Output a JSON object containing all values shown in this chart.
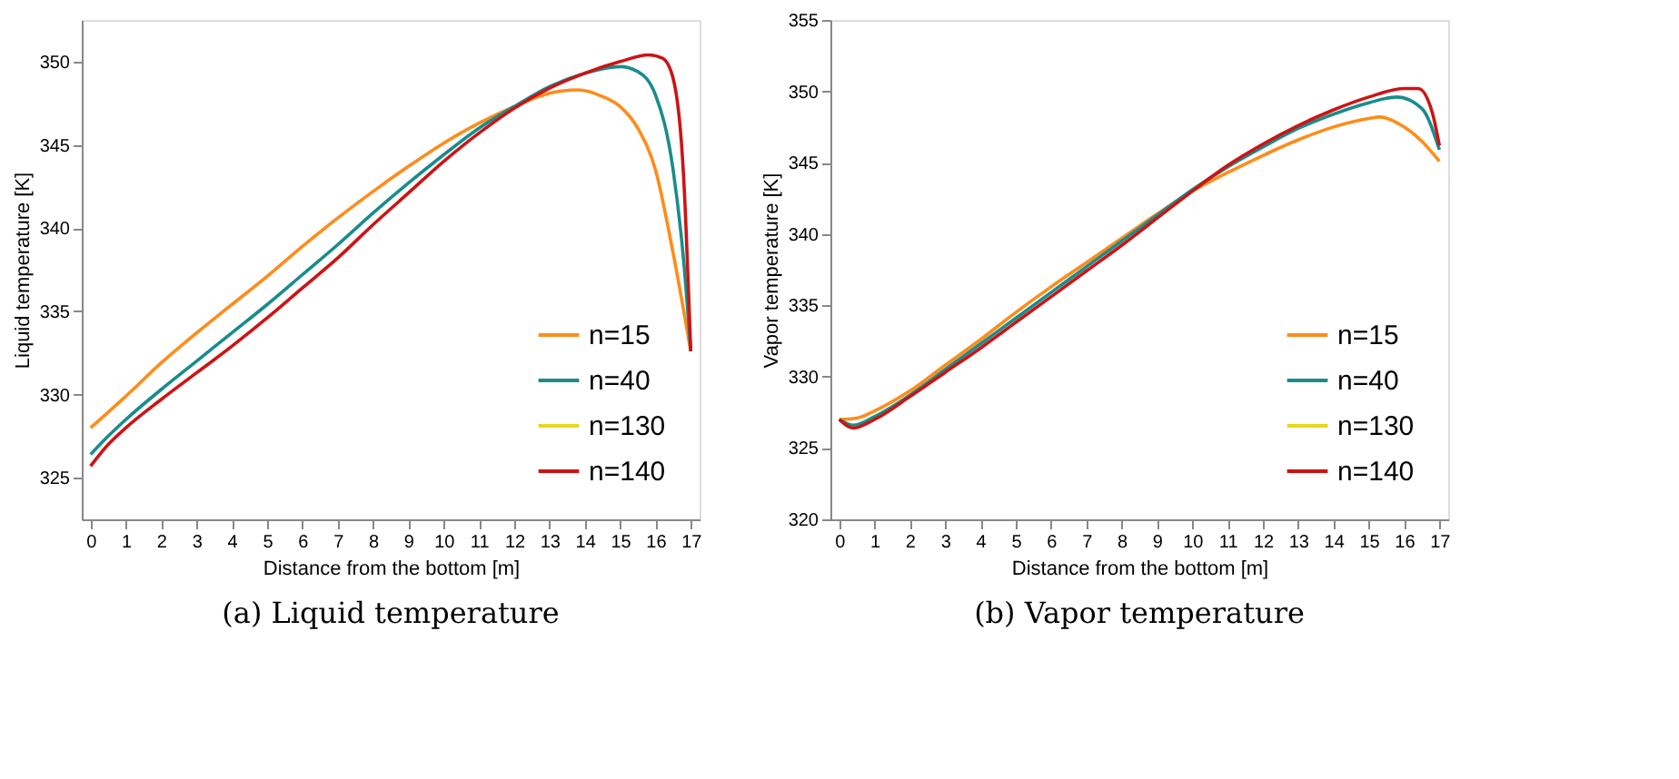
{
  "chart_data": [
    {
      "type": "line",
      "title": "(a) Liquid temperature",
      "xlabel": "Distance from the bottom [m]",
      "ylabel": "Liquid temperature [K]",
      "xlim": [
        -0.25,
        17.25
      ],
      "ylim": [
        322.5,
        352.5
      ],
      "xticks": [
        0,
        1,
        2,
        3,
        4,
        5,
        6,
        7,
        8,
        9,
        10,
        11,
        12,
        13,
        14,
        15,
        16,
        17
      ],
      "yticks": [
        325,
        330,
        335,
        340,
        345,
        350
      ],
      "grid": false,
      "legend": "bottom right",
      "series": [
        {
          "name": "n=15",
          "color": "#ff8c1a",
          "x": [
            0,
            1,
            2,
            3,
            4,
            5,
            6,
            7,
            8,
            9,
            10,
            11,
            12,
            13,
            13.8,
            14.5,
            15,
            15.5,
            16,
            16.5,
            17
          ],
          "values": [
            328.0,
            329.9,
            331.9,
            333.7,
            335.4,
            337.1,
            338.9,
            340.6,
            342.2,
            343.7,
            345.1,
            346.3,
            347.3,
            348.1,
            348.3,
            347.9,
            347.3,
            346.0,
            343.5,
            338.5,
            332.6
          ]
        },
        {
          "name": "n=40",
          "color": "#1a8c8c",
          "x": [
            0,
            0.5,
            1,
            2,
            3,
            4,
            5,
            6,
            7,
            8,
            9,
            10,
            11,
            12,
            13,
            14,
            15,
            15.5,
            16,
            16.5,
            16.8,
            17
          ],
          "values": [
            326.4,
            327.5,
            328.5,
            330.3,
            332.0,
            333.7,
            335.4,
            337.2,
            339.0,
            340.9,
            342.7,
            344.4,
            346.0,
            347.3,
            348.5,
            349.3,
            349.7,
            349.4,
            348.0,
            343.5,
            338.0,
            332.6
          ]
        },
        {
          "name": "n=130",
          "color": "#e6d820"
        },
        {
          "name": "n=140",
          "color": "#cc1414",
          "x": [
            0,
            0.5,
            1,
            2,
            3,
            4,
            5,
            6,
            7,
            8,
            9,
            10,
            11,
            12,
            13,
            14,
            15,
            15.8,
            16.2,
            16.5,
            16.8,
            17
          ],
          "values": [
            325.7,
            327.0,
            328.0,
            329.7,
            331.3,
            332.9,
            334.6,
            336.4,
            338.2,
            340.2,
            342.1,
            344.0,
            345.7,
            347.2,
            348.4,
            349.3,
            350.0,
            350.4,
            350.2,
            349.0,
            343.0,
            332.6
          ]
        }
      ]
    },
    {
      "type": "line",
      "title": "(b) Vapor temperature",
      "xlabel": "Distance from the bottom [m]",
      "ylabel": "Vapor temperature [K]",
      "xlim": [
        -0.25,
        17.25
      ],
      "ylim": [
        320,
        355
      ],
      "xticks": [
        0,
        1,
        2,
        3,
        4,
        5,
        6,
        7,
        8,
        9,
        10,
        11,
        12,
        13,
        14,
        15,
        16,
        17
      ],
      "yticks": [
        320,
        325,
        330,
        335,
        340,
        345,
        350,
        355
      ],
      "grid": false,
      "legend": "bottom right",
      "series": [
        {
          "name": "n=15",
          "color": "#ff8c1a",
          "x": [
            0,
            0.5,
            1,
            2,
            3,
            4,
            5,
            6,
            7,
            8,
            9,
            10,
            11,
            12,
            13,
            14,
            15,
            15.3,
            16,
            16.5,
            17
          ],
          "values": [
            327.0,
            327.1,
            327.6,
            329.0,
            330.8,
            332.6,
            334.5,
            336.3,
            338.0,
            339.7,
            341.4,
            343.0,
            344.3,
            345.5,
            346.6,
            347.5,
            348.1,
            348.2,
            347.5,
            346.5,
            345.1
          ]
        },
        {
          "name": "n=40",
          "color": "#1a8c8c",
          "x": [
            0,
            0.4,
            1,
            2,
            3,
            4,
            5,
            6,
            7,
            8,
            9,
            10,
            11,
            12,
            13,
            14,
            15,
            15.8,
            16.5,
            17
          ],
          "values": [
            327.0,
            326.6,
            327.2,
            328.7,
            330.5,
            332.3,
            334.1,
            335.9,
            337.7,
            339.5,
            341.3,
            343.1,
            344.7,
            346.1,
            347.4,
            348.4,
            349.2,
            349.6,
            348.8,
            345.9
          ]
        },
        {
          "name": "n=130",
          "color": "#e6d820"
        },
        {
          "name": "n=140",
          "color": "#cc1414",
          "x": [
            0,
            0.4,
            1,
            2,
            3,
            4,
            5,
            6,
            7,
            8,
            9,
            10,
            11,
            12,
            13,
            14,
            15,
            16,
            16.4,
            16.8,
            17
          ],
          "values": [
            327.0,
            326.4,
            327.0,
            328.6,
            330.3,
            332.0,
            333.8,
            335.6,
            337.4,
            339.2,
            341.1,
            343.0,
            344.8,
            346.3,
            347.6,
            348.7,
            349.6,
            350.2,
            350.2,
            348.5,
            346.2
          ]
        }
      ]
    }
  ]
}
